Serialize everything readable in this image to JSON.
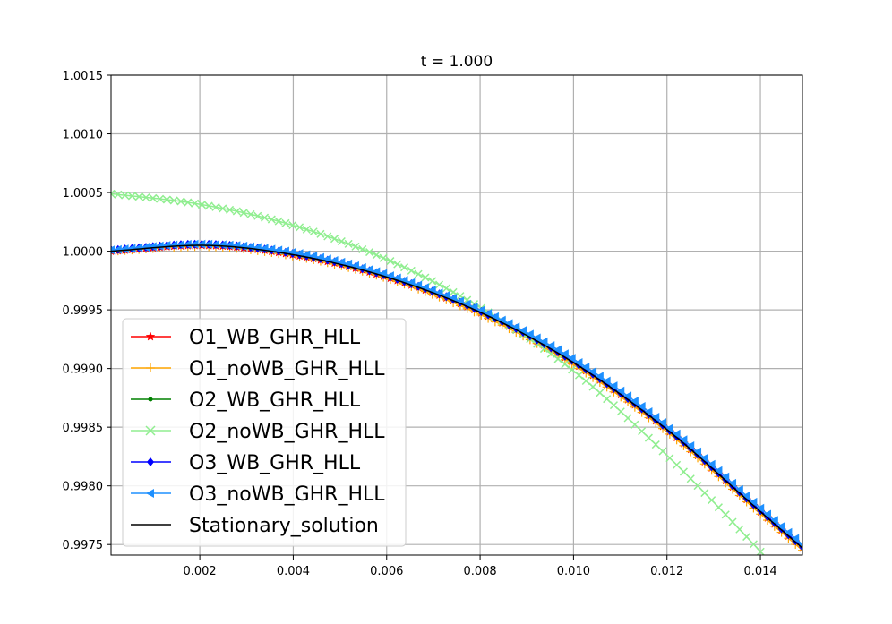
{
  "chart_data": {
    "type": "line",
    "title": "t = 1.000",
    "xlabel": "",
    "ylabel": "",
    "xlim": [
      0.0001,
      0.0149
    ],
    "ylim": [
      0.99741,
      1.0015
    ],
    "xticks": [
      0.002,
      0.004,
      0.006,
      0.008,
      0.01,
      0.012,
      0.014
    ],
    "xtick_labels": [
      "0.002",
      "0.004",
      "0.006",
      "0.008",
      "0.010",
      "0.012",
      "0.014"
    ],
    "yticks": [
      0.9975,
      0.998,
      0.9985,
      0.999,
      0.9995,
      1.0,
      1.0005,
      1.001,
      1.0015
    ],
    "ytick_labels": [
      "0.9975",
      "0.9980",
      "0.9985",
      "0.9990",
      "0.9995",
      "1.0000",
      "1.0005",
      "1.0010",
      "1.0015"
    ],
    "grid": true,
    "legend_position": "lower-left",
    "x": [
      0.0001,
      0.002,
      0.004,
      0.006,
      0.008,
      0.01,
      0.012,
      0.014,
      0.0149
    ],
    "series": [
      {
        "name": "O1_WB_GHR_HLL",
        "color": "#ff0000",
        "marker": "star",
        "values": [
          1.0,
          1.00005,
          0.99997,
          0.99978,
          0.99948,
          0.99905,
          0.99848,
          0.99778,
          0.99747
        ]
      },
      {
        "name": "O1_noWB_GHR_HLL",
        "color": "#ffa500",
        "marker": "plus",
        "values": [
          1.0,
          1.00004,
          0.99996,
          0.99977,
          0.99946,
          0.99903,
          0.99846,
          0.99776,
          0.99745
        ]
      },
      {
        "name": "O2_WB_GHR_HLL",
        "color": "#008000",
        "marker": "dot",
        "values": [
          1.0,
          1.00005,
          0.99997,
          0.99978,
          0.99948,
          0.99905,
          0.99848,
          0.99778,
          0.99747
        ]
      },
      {
        "name": "O2_noWB_GHR_HLL",
        "color": "#90ee90",
        "marker": "x",
        "values": [
          1.00049,
          1.0004,
          1.00022,
          0.99993,
          0.99952,
          0.99898,
          0.99826,
          0.99744,
          0.99704
        ]
      },
      {
        "name": "O3_WB_GHR_HLL",
        "color": "#0000ff",
        "marker": "diamond",
        "values": [
          1.00001,
          1.00006,
          0.99998,
          0.99979,
          0.99949,
          0.99906,
          0.99849,
          0.99779,
          0.99748
        ]
      },
      {
        "name": "O3_noWB_GHR_HLL",
        "color": "#1e90ff",
        "marker": "triangle-left",
        "values": [
          1.00001,
          1.00006,
          0.99999,
          0.9998,
          0.9995,
          0.99908,
          0.99851,
          0.99781,
          0.9975
        ]
      },
      {
        "name": "Stationary_solution",
        "color": "#000000",
        "marker": "none",
        "values": [
          1.0,
          1.00005,
          0.99997,
          0.99978,
          0.99948,
          0.99905,
          0.99848,
          0.99778,
          0.99747
        ]
      }
    ]
  }
}
